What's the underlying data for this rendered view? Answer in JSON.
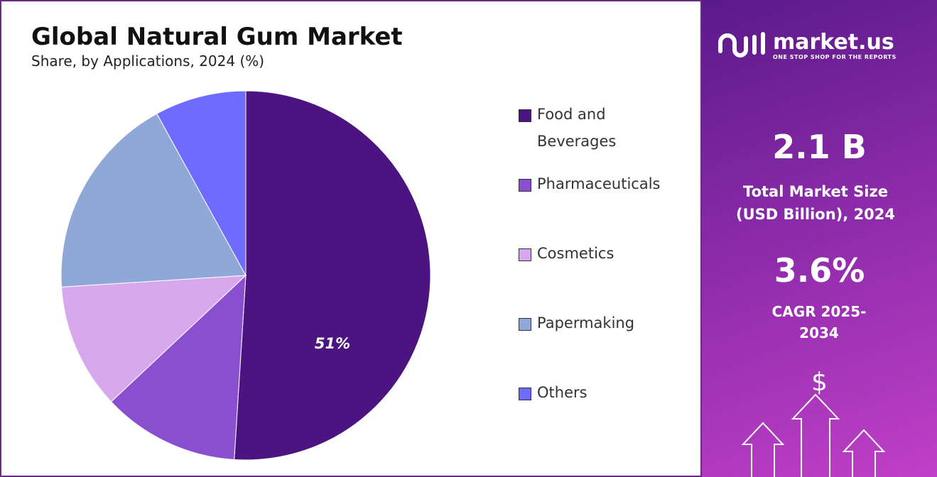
{
  "chart_data": {
    "type": "pie",
    "title": "Global Natural Gum Market",
    "subtitle": "Share, by Applications, 2024 (%)",
    "categories": [
      "Food and Beverages",
      "Pharmaceuticals",
      "Cosmetics",
      "Papermaking",
      "Others"
    ],
    "values": [
      51,
      12,
      11,
      18,
      8
    ],
    "value_labels": [
      "51%",
      null,
      null,
      null,
      null
    ],
    "colors": [
      "#4b1480",
      "#8a4fd0",
      "#d7a8ee",
      "#8fa8d8",
      "#6f6bff"
    ]
  },
  "panel": {
    "brand": "market.us",
    "tagline": "ONE STOP SHOP FOR THE REPORTS",
    "market_size": "2.1 B",
    "market_size_label": "Total Market Size (USD Billion), 2024",
    "cagr": "3.6%",
    "cagr_label": "CAGR 2025-2034",
    "symbol": "$"
  }
}
